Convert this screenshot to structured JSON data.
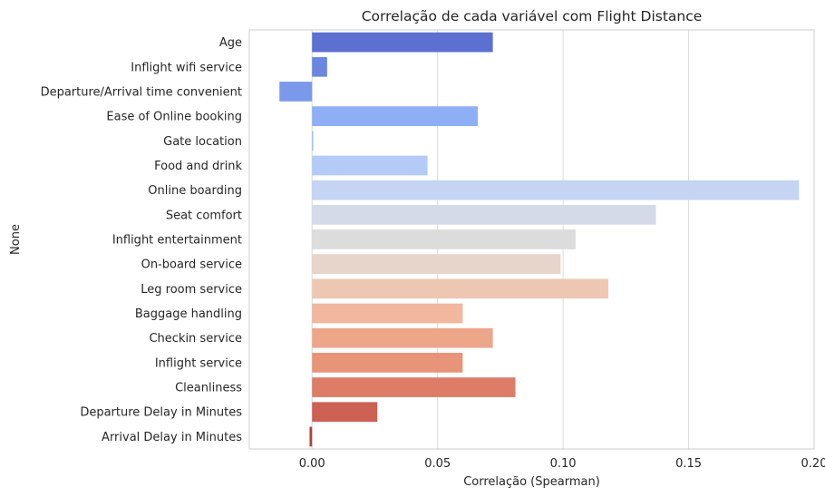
{
  "chart_data": {
    "type": "bar",
    "orientation": "horizontal",
    "title": "Correlação de cada variável com Flight Distance",
    "xlabel": "Correlação (Spearman)",
    "ylabel": "None",
    "xlim": [
      -0.025,
      0.2
    ],
    "xticks": [
      0.0,
      0.05,
      0.1,
      0.15,
      0.2
    ],
    "xtick_labels": [
      "0.00",
      "0.05",
      "0.10",
      "0.15",
      "0.20"
    ],
    "grid": true,
    "palette": "coolwarm",
    "categories": [
      "Age",
      "Inflight wifi service",
      "Departure/Arrival time convenient",
      "Ease of Online booking",
      "Gate location",
      "Food and drink",
      "Online boarding",
      "Seat comfort",
      "Inflight entertainment",
      "On-board service",
      "Leg room service",
      "Baggage handling",
      "Checkin service",
      "Inflight service",
      "Cleanliness",
      "Departure Delay in Minutes",
      "Arrival Delay in Minutes"
    ],
    "values": [
      0.072,
      0.006,
      -0.013,
      0.066,
      0.0005,
      0.046,
      0.194,
      0.137,
      0.105,
      0.099,
      0.118,
      0.06,
      0.072,
      0.06,
      0.081,
      0.026,
      -0.001
    ],
    "colors": [
      "#5b70d0",
      "#6a86e0",
      "#7b98ea",
      "#8eaef5",
      "#a2bff8",
      "#b3cbf6",
      "#c4d4f2",
      "#d3dbe9",
      "#dddcdc",
      "#e7d4cb",
      "#edc7b4",
      "#f1b79f",
      "#eea68a",
      "#e89478",
      "#dd7d68",
      "#cd6154",
      "#b63e3e"
    ]
  }
}
